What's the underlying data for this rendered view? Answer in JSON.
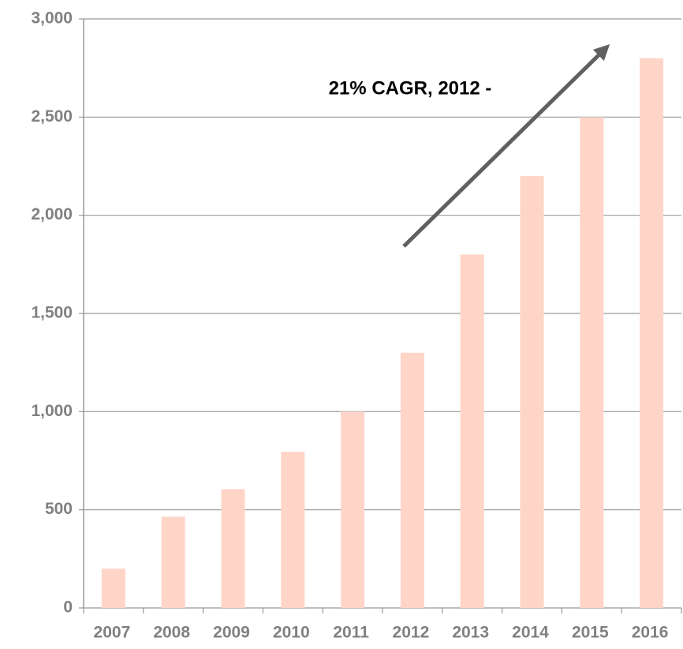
{
  "chart_data": {
    "type": "bar",
    "annotation": "21% CAGR, 2012 -",
    "categories": [
      "2007",
      "2008",
      "2009",
      "2010",
      "2011",
      "2012",
      "2013",
      "2014",
      "2015",
      "2016"
    ],
    "values": [
      200,
      465,
      605,
      795,
      1000,
      1300,
      1800,
      2200,
      2500,
      2800
    ],
    "color": "#ffd5c8",
    "ylim": [
      0,
      3000
    ],
    "yticks": [
      0,
      500,
      {
        "value": 1000,
        "label": "1,000"
      },
      {
        "value": 1500,
        "label": "1,500"
      },
      {
        "value": 2000,
        "label": "2,000"
      },
      {
        "value": 2500,
        "label": "2,500"
      },
      {
        "value": 3000,
        "label": "3,000"
      }
    ],
    "grid": true
  }
}
